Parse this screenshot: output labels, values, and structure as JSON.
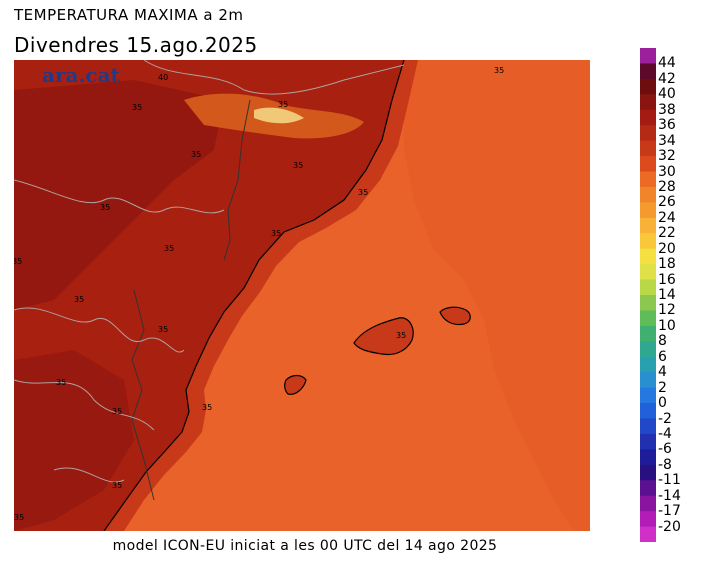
{
  "header": {
    "title": "TEMPERATURA MAXIMA a 2m",
    "date": "Divendres  15.ago.2025"
  },
  "footer": {
    "text": "model ICON-EU iniciat a les 00 UTC del 14 ago 2025"
  },
  "map": {
    "logo_text": "ara.cat",
    "contour_labels": [
      "40",
      "35",
      "35",
      "35",
      "35",
      "35",
      "35",
      "35",
      "35",
      "35",
      "35",
      "35",
      "35",
      "35",
      "35",
      "35",
      "35",
      "35"
    ]
  },
  "colorbar": {
    "labels": [
      "44",
      "42",
      "40",
      "38",
      "36",
      "34",
      "32",
      "30",
      "28",
      "26",
      "24",
      "22",
      "20",
      "18",
      "16",
      "14",
      "12",
      "10",
      "8",
      "6",
      "4",
      "2",
      "0",
      "-2",
      "-4",
      "-6",
      "-8",
      "-11",
      "-14",
      "-17",
      "-20"
    ],
    "colors": [
      "#9c1f9c",
      "#5c0a2a",
      "#6e0d0d",
      "#8a1410",
      "#a31b12",
      "#b52a14",
      "#c8391a",
      "#dc4a1e",
      "#ec6a24",
      "#f0852a",
      "#f59a2e",
      "#f8b238",
      "#f8c83a",
      "#f4e040",
      "#e0e048",
      "#b8d848",
      "#8cc850",
      "#60bc58",
      "#40b070",
      "#30a890",
      "#28a0b0",
      "#2890d0",
      "#2478e0",
      "#2060d8",
      "#2048c8",
      "#2030b0",
      "#1e1c98",
      "#281080",
      "#5a1090",
      "#8a14a0",
      "#b41cb8",
      "#d030c8"
    ]
  }
}
